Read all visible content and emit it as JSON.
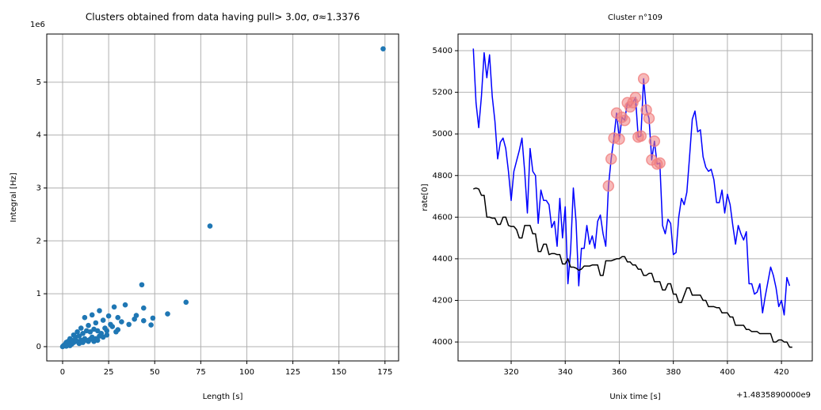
{
  "chart_data": [
    {
      "type": "scatter",
      "title": "Clusters obtained from data having pull> 3.0σ, σ≈1.3376",
      "x_label": "Length [s]",
      "y_label": "Integral [Hz]",
      "y_offset_label": "1e6",
      "color": "#1f77b4",
      "grid": true,
      "xlim": [
        -8.6,
        182.4
      ],
      "ylim": [
        -0.27,
        5.91
      ],
      "xticks": [
        0,
        25,
        50,
        75,
        100,
        125,
        150,
        175
      ],
      "yticks": [
        0,
        1,
        2,
        3,
        4,
        5
      ],
      "x": [
        174,
        80,
        43,
        67,
        57,
        49,
        48,
        44,
        34,
        28,
        40,
        39,
        44,
        20,
        16,
        12,
        30,
        32,
        25,
        22,
        36,
        27,
        18,
        14,
        10,
        24,
        30,
        8,
        6,
        4,
        2,
        0,
        1,
        3,
        5,
        7,
        9,
        11,
        13,
        15,
        17,
        19,
        21,
        23,
        26,
        29,
        12,
        16,
        20,
        24,
        8,
        10,
        14,
        18,
        22,
        0.5,
        1.5,
        2.5,
        3.5,
        5,
        6,
        7,
        9,
        11,
        13,
        15,
        19,
        17,
        4,
        2
      ],
      "values": [
        5.63,
        2.28,
        1.17,
        0.84,
        0.62,
        0.54,
        0.41,
        0.73,
        0.79,
        0.75,
        0.59,
        0.52,
        0.49,
        0.68,
        0.6,
        0.55,
        0.55,
        0.47,
        0.58,
        0.5,
        0.42,
        0.38,
        0.45,
        0.4,
        0.35,
        0.3,
        0.32,
        0.28,
        0.22,
        0.15,
        0.08,
        0,
        0.03,
        0.1,
        0.12,
        0.18,
        0.2,
        0.25,
        0.3,
        0.28,
        0.33,
        0.3,
        0.25,
        0.35,
        0.42,
        0.28,
        0.15,
        0.18,
        0.2,
        0.22,
        0.1,
        0.12,
        0.1,
        0.15,
        0.18,
        0.02,
        0.05,
        0.06,
        0.04,
        0.05,
        0.08,
        0.1,
        0.06,
        0.08,
        0.12,
        0.14,
        0.12,
        0.1,
        0.02,
        0.01
      ]
    },
    {
      "type": "line",
      "title": "Cluster n°109",
      "x_label": "Unix time [s]",
      "y_label": "rate[0]",
      "x_offset_label": "+1.4835890000e9",
      "grid": true,
      "xlim": [
        300.35,
        431.4
      ],
      "ylim": [
        3909,
        5480
      ],
      "xticks": [
        320,
        340,
        360,
        380,
        400,
        420
      ],
      "yticks": [
        4000,
        4200,
        4400,
        4600,
        4800,
        5000,
        5200,
        5400
      ],
      "x": [
        306,
        307,
        308,
        309,
        310,
        311,
        312,
        313,
        314,
        315,
        316,
        317,
        318,
        319,
        320,
        321,
        322,
        323,
        324,
        325,
        326,
        327,
        328,
        329,
        330,
        331,
        332,
        333,
        334,
        335,
        336,
        337,
        338,
        339,
        340,
        341,
        342,
        343,
        344,
        345,
        346,
        347,
        348,
        349,
        350,
        351,
        352,
        353,
        354,
        355,
        356,
        357,
        358,
        359,
        360,
        361,
        362,
        363,
        364,
        365,
        366,
        367,
        368,
        369,
        370,
        371,
        372,
        373,
        374,
        375,
        376,
        377,
        378,
        379,
        380,
        381,
        382,
        383,
        384,
        385,
        386,
        387,
        388,
        389,
        390,
        391,
        392,
        393,
        394,
        395,
        396,
        397,
        398,
        399,
        400,
        401,
        402,
        403,
        404,
        405,
        406,
        407,
        408,
        409,
        410,
        411,
        412,
        413,
        414,
        415,
        416,
        417,
        418,
        419,
        420,
        421,
        422,
        423,
        424
      ],
      "series": [
        {
          "color": "#0000ff",
          "mode": "lines",
          "values": [
            5410,
            5150,
            5030,
            5180,
            5390,
            5270,
            5380,
            5180,
            5060,
            4880,
            4960,
            4980,
            4930,
            4820,
            4680,
            4820,
            4870,
            4920,
            4980,
            4820,
            4620,
            4930,
            4820,
            4800,
            4570,
            4730,
            4680,
            4680,
            4660,
            4550,
            4580,
            4460,
            4690,
            4500,
            4650,
            4280,
            4440,
            4740,
            4580,
            4270,
            4450,
            4450,
            4560,
            4470,
            4510,
            4450,
            4580,
            4610,
            4520,
            4460,
            4750,
            4880,
            4980,
            5100,
            4975,
            5080,
            5065,
            5150,
            5130,
            5150,
            5175,
            4985,
            4990,
            5265,
            5115,
            5075,
            4875,
            4965,
            4855,
            4860,
            4560,
            4520,
            4590,
            4570,
            4420,
            4430,
            4600,
            4690,
            4660,
            4720,
            4890,
            5070,
            5110,
            5010,
            5020,
            4890,
            4840,
            4820,
            4830,
            4780,
            4670,
            4670,
            4730,
            4620,
            4710,
            4660,
            4560,
            4470,
            4560,
            4520,
            4490,
            4530,
            4280,
            4280,
            4230,
            4240,
            4280,
            4140,
            4220,
            4290,
            4360,
            4320,
            4260,
            4170,
            4200,
            4130,
            4310,
            4270,
            null
          ]
        },
        {
          "color": "#000000",
          "mode": "lines",
          "values": [
            4735,
            4740,
            4735,
            4705,
            4705,
            4600,
            4600,
            4595,
            4595,
            4565,
            4565,
            4600,
            4600,
            4560,
            4555,
            4555,
            4540,
            4500,
            4500,
            4560,
            4560,
            4560,
            4520,
            4520,
            4435,
            4435,
            4470,
            4470,
            4420,
            4425,
            4425,
            4420,
            4420,
            4375,
            4375,
            4400,
            4360,
            4360,
            4355,
            4345,
            4350,
            4365,
            4365,
            4365,
            4370,
            4370,
            4370,
            4320,
            4320,
            4390,
            4390,
            4390,
            4395,
            4400,
            4400,
            4410,
            4410,
            4385,
            4385,
            4370,
            4370,
            4350,
            4350,
            4320,
            4320,
            4330,
            4330,
            4290,
            4290,
            4290,
            4250,
            4250,
            4280,
            4280,
            4230,
            4230,
            4190,
            4190,
            4225,
            4260,
            4260,
            4225,
            4225,
            4225,
            4225,
            4200,
            4200,
            4170,
            4170,
            4170,
            4165,
            4165,
            4140,
            4140,
            4140,
            4120,
            4120,
            4080,
            4080,
            4080,
            4080,
            4060,
            4060,
            4050,
            4050,
            4050,
            4040,
            4040,
            4040,
            4040,
            4040,
            4000,
            4000,
            4010,
            4010,
            4000,
            4000,
            3975,
            3975
          ]
        },
        {
          "color": "#f08080",
          "mode": "markers",
          "values": [
            null,
            null,
            null,
            null,
            null,
            null,
            null,
            null,
            null,
            null,
            null,
            null,
            null,
            null,
            null,
            null,
            null,
            null,
            null,
            null,
            null,
            null,
            null,
            null,
            null,
            null,
            null,
            null,
            null,
            null,
            null,
            null,
            null,
            null,
            null,
            null,
            null,
            null,
            null,
            null,
            null,
            null,
            null,
            null,
            null,
            null,
            null,
            null,
            null,
            null,
            4750,
            4880,
            4980,
            5100,
            4975,
            5080,
            5065,
            5150,
            5130,
            5150,
            5175,
            4985,
            4990,
            5265,
            5115,
            5075,
            4875,
            4965,
            4855,
            4860,
            null,
            null,
            null,
            null,
            null,
            null,
            null,
            null,
            null,
            null,
            null,
            null,
            null,
            null,
            null,
            null,
            null,
            null,
            null,
            null,
            null,
            null,
            null,
            null,
            null,
            null,
            null,
            null,
            null,
            null,
            null,
            null,
            null,
            null,
            null,
            null,
            null,
            null,
            null,
            null,
            null,
            null,
            null,
            null,
            null,
            null,
            null,
            null,
            null
          ]
        }
      ]
    }
  ]
}
